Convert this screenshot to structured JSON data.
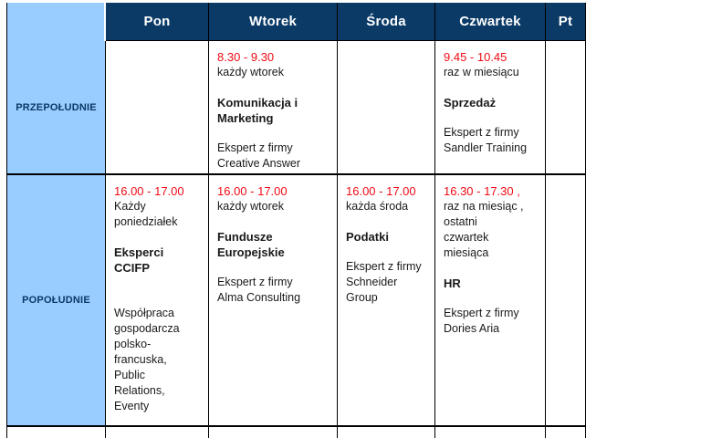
{
  "colors": {
    "navy": "#0b3a67",
    "light_blue": "#99ccff",
    "red": "#f00a14",
    "border": "#000000",
    "text": "#1a1a1a",
    "header_text": "#ffffff"
  },
  "header": {
    "day_columns": [
      "Pon",
      "Wtorek",
      "Środa",
      "Czwartek",
      "Pt"
    ]
  },
  "rows": [
    {
      "label": "PRZEPOŁUDNIE",
      "cells": [
        {},
        {
          "time": "8.30 - 9.30",
          "frequency": "każdy wtorek",
          "topic": "Komunikacja  i\nMarketing",
          "expert": "Ekspert z firmy\nCreative Answer"
        },
        {},
        {
          "time": "9.45 - 10.45",
          "frequency": "raz w miesiącu",
          "topic": "Sprzedaż",
          "expert": "Ekspert z firmy\nSandler Training"
        },
        {}
      ]
    },
    {
      "label": "POPOŁUDNIE",
      "cells": [
        {
          "time": "16.00 - 17.00",
          "frequency": "Każdy\nponiedziałek",
          "topic": "Eksperci CCIFP",
          "expert": "Współpraca\ngospodarcza\npolsko-\nfrancuska,\nPublic\nRelations,\nEventy"
        },
        {
          "time": "16.00 - 17.00",
          "frequency": "każdy wtorek",
          "topic": "Fundusze\nEuropejskie",
          "expert": "Ekspert z firmy\nAlma Consulting"
        },
        {
          "time": "16.00 - 17.00",
          "frequency": "każda środa",
          "topic": "Podatki",
          "expert": "Ekspert z firmy\nSchneider\nGroup"
        },
        {
          "time": "16.30 - 17.30 ,",
          "frequency": "raz na miesiąc ,\nostatni\nczwartek\nmiesiąca",
          "topic": "HR",
          "expert": "Ekspert z firmy\nDories Aria"
        },
        {}
      ]
    }
  ]
}
